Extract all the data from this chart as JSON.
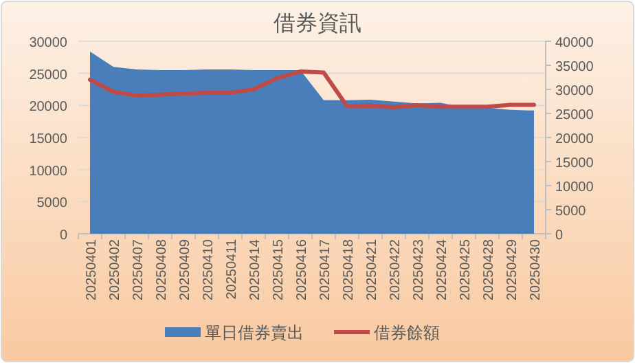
{
  "chart_data": {
    "type": "area",
    "title": "借券資訊",
    "categories": [
      "20250401",
      "20250402",
      "20250407",
      "20250408",
      "20250409",
      "20250410",
      "20250411",
      "20250414",
      "20250415",
      "20250416",
      "20250417",
      "20250418",
      "20250421",
      "20250422",
      "20250423",
      "20250424",
      "20250425",
      "20250428",
      "20250429",
      "20250430"
    ],
    "series": [
      {
        "name": "單日借券賣出",
        "color": "#4a7ebb",
        "values": [
          28400,
          26000,
          25600,
          25500,
          25500,
          25600,
          25600,
          25500,
          25500,
          25500,
          20800,
          20800,
          20900,
          20600,
          20300,
          20400,
          19700,
          19600,
          19300,
          19200
        ]
      },
      {
        "name": "借券餘額",
        "type": "line",
        "axis": "y2",
        "color": "#be4b48",
        "values": [
          32000,
          29500,
          28700,
          28900,
          29100,
          29300,
          29300,
          30000,
          32300,
          33700,
          33500,
          26500,
          26600,
          26300,
          26700,
          26400,
          26400,
          26400,
          26800,
          26800
        ]
      }
    ],
    "ylim": [
      0,
      30000
    ],
    "yticks": [
      0,
      5000,
      10000,
      15000,
      20000,
      25000,
      30000
    ],
    "y2lim": [
      0,
      40000
    ],
    "y2ticks": [
      0,
      5000,
      10000,
      15000,
      20000,
      25000,
      30000,
      35000,
      40000
    ],
    "grid": "y",
    "legend": "bottom"
  }
}
